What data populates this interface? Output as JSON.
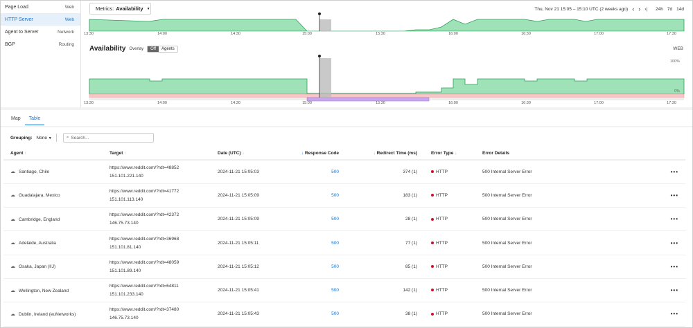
{
  "sidebar": {
    "items": [
      {
        "label": "Page Load",
        "category": "Web"
      },
      {
        "label": "HTTP Server",
        "category": "Web"
      },
      {
        "label": "Agent to Server",
        "category": "Network"
      },
      {
        "label": "BGP",
        "category": "Routing"
      }
    ]
  },
  "metrics": {
    "prefix": "Metrics:",
    "value": "Availability"
  },
  "timerange": {
    "label": "Thu, Nov 21 15:05 – 15:10 UTC (2 weeks ago)",
    "prev": "‹",
    "next": "›",
    "latest": "›|",
    "r24h": "24h",
    "r7d": "7d",
    "r14d": "14d"
  },
  "ticks": [
    "13:30",
    "14:00",
    "14:30",
    "15:00",
    "15:30",
    "16:00",
    "16:30",
    "17:00",
    "17:30"
  ],
  "availability": {
    "title": "Availability",
    "overlay_label": "Overlay",
    "off": "Off",
    "agents": "Agents",
    "type": "WEB",
    "max": "100%",
    "min": "0%"
  },
  "tabs": [
    "Map",
    "Table"
  ],
  "grouping": {
    "label": "Grouping:",
    "value": "None",
    "search_placeholder": "Search..."
  },
  "table": {
    "columns": [
      "Agent",
      "Target",
      "Date (UTC)",
      "Response Code",
      "Redirect Time (ms)",
      "Error Type",
      "Error Details"
    ],
    "rows": [
      {
        "agent": "Santiago, Chile",
        "url": "https://www.reddit.com/?rdt=48852",
        "ip": "151.101.221.140",
        "date": "2024-11-21 15:05:03",
        "code": "500",
        "redirect": "374 (1)",
        "etype": "HTTP",
        "details": "500 Internal Server Error"
      },
      {
        "agent": "Guadalajara, Mexico",
        "url": "https://www.reddit.com/?rdt=41772",
        "ip": "151.101.113.140",
        "date": "2024-11-21 15:05:09",
        "code": "500",
        "redirect": "183 (1)",
        "etype": "HTTP",
        "details": "500 Internal Server Error"
      },
      {
        "agent": "Cambridge, England",
        "url": "https://www.reddit.com/?rdt=42372",
        "ip": "146.75.73.140",
        "date": "2024-11-21 15:05:09",
        "code": "500",
        "redirect": "28 (1)",
        "etype": "HTTP",
        "details": "500 Internal Server Error"
      },
      {
        "agent": "Adelaide, Australia",
        "url": "https://www.reddit.com/?rdt=36968",
        "ip": "151.101.81.140",
        "date": "2024-11-21 15:05:11",
        "code": "500",
        "redirect": "77 (1)",
        "etype": "HTTP",
        "details": "500 Internal Server Error"
      },
      {
        "agent": "Osaka, Japan (IIJ)",
        "url": "https://www.reddit.com/?rdt=48059",
        "ip": "151.101.89.140",
        "date": "2024-11-21 15:05:12",
        "code": "500",
        "redirect": "85 (1)",
        "etype": "HTTP",
        "details": "500 Internal Server Error"
      },
      {
        "agent": "Wellington, New Zealand",
        "url": "https://www.reddit.com/?rdt=64811",
        "ip": "151.101.233.140",
        "date": "2024-11-21 15:05:41",
        "code": "500",
        "redirect": "142 (1)",
        "etype": "HTTP",
        "details": "500 Internal Server Error"
      },
      {
        "agent": "Dublin, Ireland (euNetworks)",
        "url": "https://www.reddit.com/?rdt=37480",
        "ip": "146.75.73.140",
        "date": "2024-11-21 15:05:43",
        "code": "500",
        "redirect": "38 (1)",
        "etype": "HTTP",
        "details": "500 Internal Server Error"
      }
    ],
    "more": "•••"
  },
  "colors": {
    "accent": "#1a73c8",
    "ok_fill": "#9fe2b7",
    "ok_line": "#2e9e5b",
    "error": "#c8102e"
  }
}
